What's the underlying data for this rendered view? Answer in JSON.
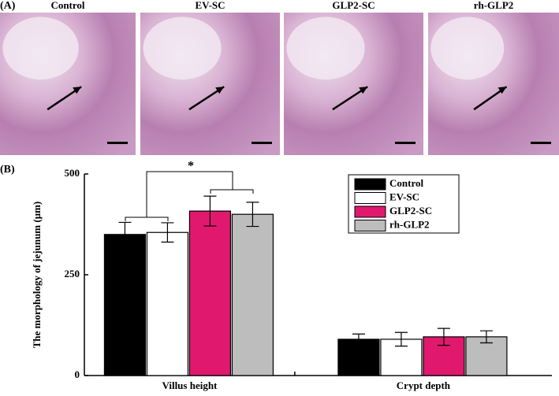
{
  "panel_a": {
    "label": "(A)",
    "images": [
      "Control",
      "EV-SC",
      "GLP2-SC",
      "rh-GLP2"
    ]
  },
  "chart_data": {
    "type": "bar",
    "panel_label": "(B)",
    "y_label": "The morphology of jejunum (μm)",
    "categories": [
      "Villus height",
      "Crypt depth"
    ],
    "series": [
      {
        "name": "Control",
        "color": "#000000",
        "values": [
          350,
          90
        ],
        "errors": [
          30,
          13
        ]
      },
      {
        "name": "EV-SC",
        "color": "#ffffff",
        "values": [
          355,
          90
        ],
        "errors": [
          24,
          17
        ]
      },
      {
        "name": "GLP2-SC",
        "color": "#e0196e",
        "values": [
          408,
          96
        ],
        "errors": [
          37,
          21
        ]
      },
      {
        "name": "rh-GLP2",
        "color": "#bdbdbd",
        "values": [
          400,
          96
        ],
        "errors": [
          30,
          15
        ]
      }
    ],
    "ylim": [
      0,
      500
    ],
    "yticks": [
      0,
      250,
      500
    ],
    "annotation": "*",
    "legend": "upper right"
  }
}
